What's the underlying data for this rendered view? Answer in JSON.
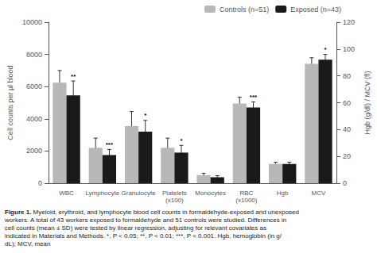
{
  "chart_data": {
    "type": "bar",
    "categories": [
      "WBC",
      "Lymphocyte",
      "Granulocyte",
      "Platelets\n(x100)",
      "Monocytes",
      "RBC\n(x1000)",
      "Hgb",
      "MCV"
    ],
    "series": [
      {
        "name": "Controls (n=51)",
        "color": "#b8b8b8",
        "values": [
          6250,
          2200,
          3550,
          2200,
          500,
          4950,
          null,
          null
        ],
        "errors": [
          750,
          600,
          900,
          600,
          120,
          400,
          null,
          null
        ]
      },
      {
        "name": "Exposed (n=43)",
        "color": "#1a1a1a",
        "values": [
          5450,
          1750,
          3200,
          1900,
          370,
          4700,
          null,
          null
        ],
        "errors": [
          900,
          350,
          700,
          450,
          100,
          350,
          null,
          null
        ],
        "significance": [
          "**",
          "***",
          "*",
          "*",
          null,
          "***",
          null,
          null
        ]
      },
      {
        "name": "Controls (n=51)",
        "color": "#b8b8b8",
        "axis": "y2",
        "values": [
          null,
          null,
          null,
          null,
          null,
          null,
          14.4,
          89
        ],
        "errors": [
          null,
          null,
          null,
          null,
          null,
          null,
          1.2,
          4.5
        ]
      },
      {
        "name": "Exposed (n=43)",
        "color": "#1a1a1a",
        "axis": "y2",
        "values": [
          null,
          null,
          null,
          null,
          null,
          null,
          14.4,
          92
        ],
        "errors": [
          null,
          null,
          null,
          null,
          null,
          null,
          1.3,
          4.0
        ],
        "significance": [
          null,
          null,
          null,
          null,
          null,
          null,
          null,
          "*"
        ]
      }
    ],
    "ylabel": "Cell counts per µl blood",
    "y2label": "Hgb (g/dl) / MCV (fl)",
    "ylim": [
      0,
      10000
    ],
    "yticks": [
      0,
      2000,
      4000,
      6000,
      8000,
      10000
    ],
    "y2lim": [
      0,
      120
    ],
    "y2ticks": [
      0,
      20,
      40,
      60,
      80,
      100,
      120
    ],
    "legend": "upper right",
    "grid": false,
    "caption_bold": "Figure 1.",
    "caption": " Myeloid, erythroid, and lymphocyte blood cell counts in formaldehyde-exposed and unexposed workers. A total of 43 workers exposed to formaldehyde and 51 controls were studied. Differences in cell counts (mean ± SD) were tested by linear regression, adjusting for relevant covariates as indicated in Materials and Methods. *, P < 0.05; **, P < 0.01; ***, P < 0.001. Hgb, hemoglobin (in g/dL); MCV, mean"
  }
}
